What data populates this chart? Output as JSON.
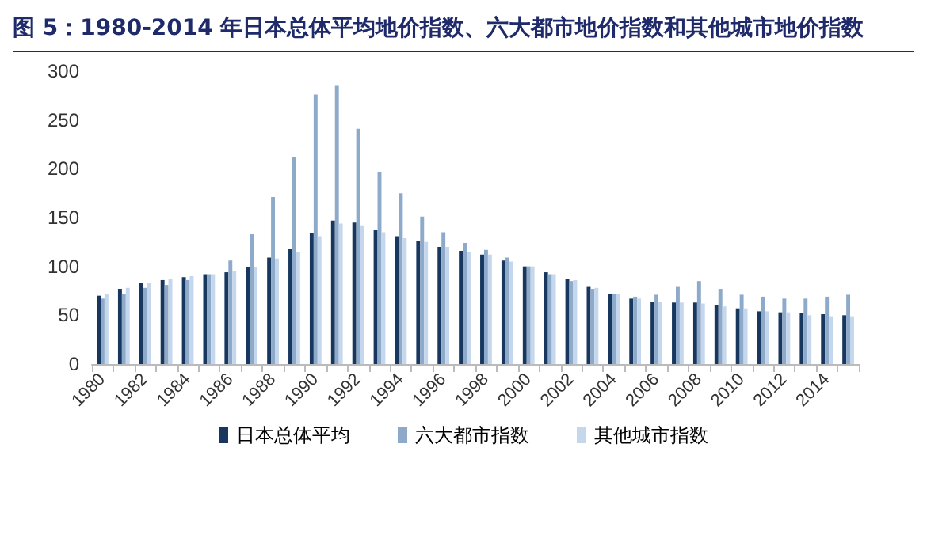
{
  "chart_data": {
    "type": "bar",
    "title": "图 5：1980-2014 年日本总体平均地价指数、六大都市地价指数和其他城市地价指数",
    "categories": [
      "1980",
      null,
      "1982",
      null,
      "1984",
      null,
      "1986",
      null,
      "1988",
      null,
      "1990",
      null,
      "1992",
      null,
      "1994",
      null,
      "1996",
      null,
      "1998",
      null,
      "2000",
      null,
      "2002",
      null,
      "2004",
      null,
      "2006",
      null,
      "2008",
      null,
      "2010",
      null,
      "2012",
      null,
      "2014",
      null
    ],
    "series": [
      {
        "name": "日本总体平均",
        "color": "#17375e",
        "values": [
          70,
          77,
          83,
          86,
          89,
          92,
          94,
          99,
          109,
          118,
          134,
          147,
          145,
          137,
          131,
          126,
          120,
          116,
          112,
          106,
          100,
          94,
          87,
          79,
          72,
          67,
          64,
          63,
          63,
          60,
          57,
          54,
          53,
          52,
          51,
          50
        ]
      },
      {
        "name": "六大都市指数",
        "color": "#8eaacb",
        "values": [
          67,
          72,
          78,
          81,
          86,
          92,
          106,
          133,
          171,
          212,
          276,
          285,
          241,
          197,
          175,
          151,
          135,
          124,
          117,
          109,
          100,
          92,
          85,
          77,
          72,
          69,
          71,
          79,
          85,
          77,
          71,
          69,
          67,
          67,
          69,
          71
        ]
      },
      {
        "name": "其他城市指数",
        "color": "#c5d7ec",
        "values": [
          72,
          78,
          83,
          87,
          90,
          92,
          95,
          99,
          108,
          115,
          131,
          144,
          142,
          135,
          129,
          125,
          120,
          115,
          112,
          105,
          100,
          92,
          86,
          78,
          72,
          67,
          64,
          63,
          62,
          59,
          57,
          54,
          53,
          50,
          49,
          49
        ]
      }
    ],
    "ylim": [
      0,
      300
    ],
    "yticks": [
      0,
      50,
      100,
      150,
      200,
      250,
      300
    ],
    "grid": false,
    "legend": "bottom"
  }
}
